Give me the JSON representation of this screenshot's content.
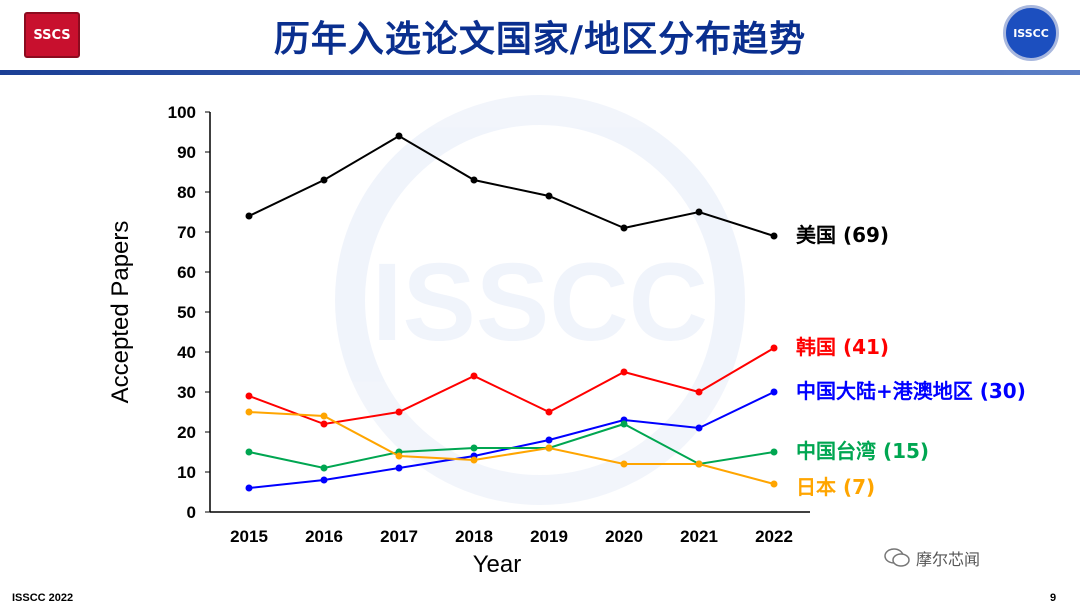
{
  "slide": {
    "title": "历年入选论文国家/地区分布趋势",
    "logo_left": "SSCS",
    "logo_right": "ISSCC",
    "footer_left": "ISSCC 2022",
    "page_number": "9",
    "watermark": "摩尔芯闻"
  },
  "chart_data": {
    "type": "line",
    "title": "",
    "xlabel": "Year",
    "ylabel": "Accepted Papers",
    "ylim": [
      0,
      100
    ],
    "yticks": [
      0,
      10,
      20,
      30,
      40,
      50,
      60,
      70,
      80,
      90,
      100
    ],
    "categories": [
      "2015",
      "2016",
      "2017",
      "2018",
      "2019",
      "2020",
      "2021",
      "2022"
    ],
    "grid": false,
    "series": [
      {
        "name": "美国 (69)",
        "color": "#000000",
        "values": [
          74,
          83,
          94,
          83,
          79,
          71,
          75,
          69
        ]
      },
      {
        "name": "韩国 (41)",
        "color": "#ff0000",
        "values": [
          29,
          22,
          25,
          34,
          25,
          35,
          30,
          41
        ]
      },
      {
        "name": "中国大陆+港澳地区 (30)",
        "color": "#0000ff",
        "values": [
          6,
          8,
          11,
          14,
          18,
          23,
          21,
          30
        ]
      },
      {
        "name": "中国台湾 (15)",
        "color": "#00a651",
        "values": [
          15,
          11,
          15,
          16,
          16,
          22,
          12,
          15
        ]
      },
      {
        "name": "日本 (7)",
        "color": "#ffa500",
        "values": [
          25,
          24,
          14,
          13,
          16,
          12,
          12,
          7
        ]
      }
    ]
  }
}
